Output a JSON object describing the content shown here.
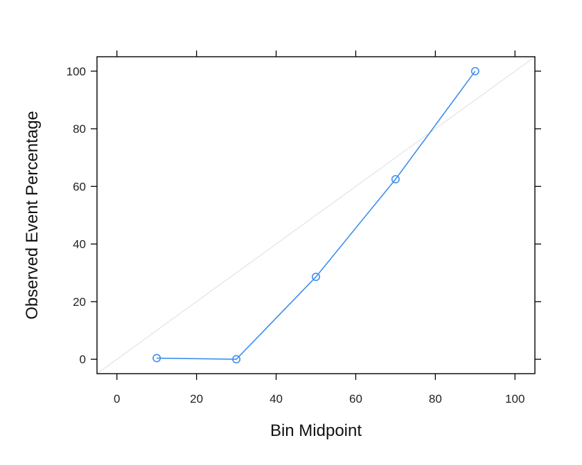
{
  "chart_data": {
    "type": "line",
    "xlabel": "Bin Midpoint",
    "ylabel": "Observed Event Percentage",
    "xlim": [
      -5,
      105
    ],
    "ylim": [
      -5,
      105
    ],
    "x_ticks": [
      0,
      20,
      40,
      60,
      80,
      100
    ],
    "y_ticks": [
      0,
      20,
      40,
      60,
      80,
      100
    ],
    "x_tick_labels": [
      "0",
      "20",
      "40",
      "60",
      "80",
      "100"
    ],
    "y_tick_labels": [
      "0",
      "20",
      "40",
      "60",
      "80",
      "100"
    ],
    "grid": false,
    "reference_line": {
      "from": [
        -5,
        -5
      ],
      "to": [
        105,
        105
      ],
      "color": "#e3e3e3"
    },
    "series": [
      {
        "x": [
          10,
          30,
          50,
          70,
          90
        ],
        "y": [
          0.4,
          0,
          28.6,
          62.5,
          100
        ],
        "color": "#3d8ef0",
        "marker": "open-circle"
      }
    ]
  }
}
